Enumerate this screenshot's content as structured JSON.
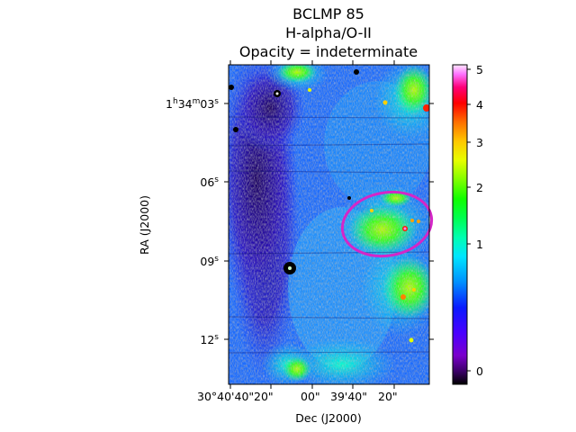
{
  "title_lines": [
    "BCLMP 85",
    "H-alpha/O-II",
    "Opacity = indeterminate"
  ],
  "axes": {
    "xlabel": "Dec (J2000)",
    "ylabel": "RA (J2000)",
    "x_ticks": [
      "30°40'40\"",
      "20\"",
      "00\"",
      "39'40\"",
      "20\""
    ],
    "y_ticks": [
      {
        "base": "1",
        "h": "h",
        "m_val": "34",
        "m": "m",
        "s_val": "03",
        "s": "s"
      },
      {
        "base": "",
        "h": "",
        "m_val": "",
        "m": "",
        "s_val": "06",
        "s": "s"
      },
      {
        "base": "",
        "h": "",
        "m_val": "",
        "m": "",
        "s_val": "09",
        "s": "s"
      },
      {
        "base": "",
        "h": "",
        "m_val": "",
        "m": "",
        "s_val": "12",
        "s": "s"
      }
    ]
  },
  "colorbar": {
    "ticks": [
      "5",
      "4",
      "3",
      "2",
      "1",
      "0"
    ],
    "colormap": "gist_ncar"
  },
  "overlay": {
    "shape": "ellipse",
    "color": "#d426c8"
  }
}
